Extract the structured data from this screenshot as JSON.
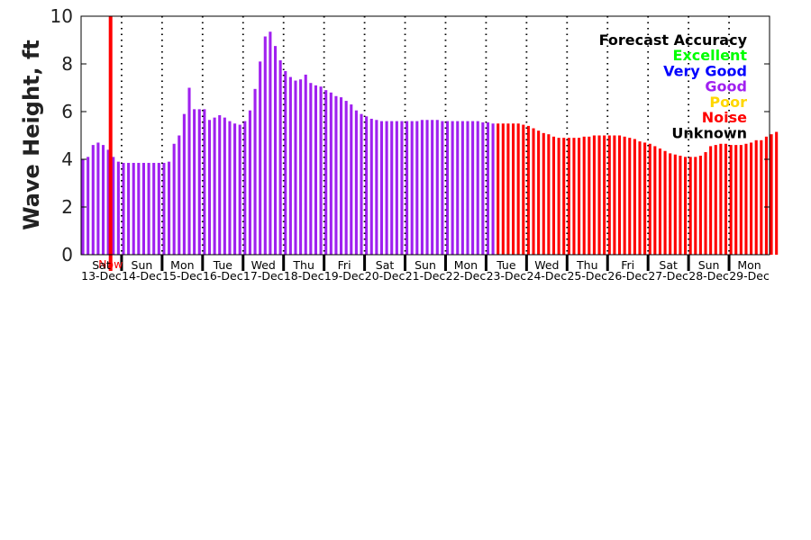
{
  "chart_data": {
    "type": "bar",
    "ylabel": "Wave Height, ft",
    "ylim": [
      0,
      10
    ],
    "yticks": [
      "0",
      "2",
      "4",
      "6",
      "8",
      "10"
    ],
    "grid": "vertical dotted at day boundaries",
    "days": [
      {
        "day": "Sat",
        "date": "13-Dec"
      },
      {
        "day": "Sun",
        "date": "14-Dec"
      },
      {
        "day": "Mon",
        "date": "15-Dec"
      },
      {
        "day": "Tue",
        "date": "16-Dec"
      },
      {
        "day": "Wed",
        "date": "17-Dec"
      },
      {
        "day": "Thu",
        "date": "18-Dec"
      },
      {
        "day": "Fri",
        "date": "19-Dec"
      },
      {
        "day": "Sat",
        "date": "20-Dec"
      },
      {
        "day": "Sun",
        "date": "21-Dec"
      },
      {
        "day": "Mon",
        "date": "22-Dec"
      },
      {
        "day": "Tue",
        "date": "23-Dec"
      },
      {
        "day": "Wed",
        "date": "24-Dec"
      },
      {
        "day": "Thu",
        "date": "25-Dec"
      },
      {
        "day": "Fri",
        "date": "26-Dec"
      },
      {
        "day": "Sat",
        "date": "27-Dec"
      },
      {
        "day": "Sun",
        "date": "28-Dec"
      },
      {
        "day": "Mon",
        "date": "29-Dec"
      }
    ],
    "now_label": "Now",
    "now_color": "#ff0000",
    "now_time": "13-Dec 18:00",
    "interval_hours": 3,
    "series": [
      {
        "accuracy": "Good",
        "color": "#a020f0",
        "start": "13-Dec 00:00",
        "values": [
          4.0,
          4.1,
          4.6,
          4.7,
          4.6,
          4.4,
          4.1,
          3.9,
          3.85,
          3.85,
          3.85,
          3.85,
          3.85,
          3.85,
          3.85,
          3.85,
          3.85,
          3.9,
          4.65,
          5.0,
          5.9,
          7.0,
          6.1,
          6.1,
          6.1,
          5.65,
          5.75,
          5.85,
          5.75,
          5.6,
          5.5,
          5.45,
          5.6,
          6.05,
          6.95,
          8.1,
          9.15,
          9.35,
          8.75,
          8.15,
          7.7,
          7.45,
          7.3,
          7.35,
          7.55,
          7.2,
          7.1,
          7.05,
          6.9,
          6.8,
          6.65,
          6.6,
          6.45,
          6.3,
          6.05,
          5.9,
          5.8,
          5.7,
          5.65,
          5.6,
          5.6,
          5.6,
          5.6,
          5.6,
          5.6,
          5.6,
          5.6,
          5.65,
          5.65,
          5.65,
          5.65,
          5.6,
          5.6,
          5.6,
          5.6,
          5.6,
          5.6,
          5.6,
          5.6,
          5.55,
          5.55,
          5.5
        ]
      },
      {
        "accuracy": "Noise",
        "color": "#ff0000",
        "start": "23-Dec 06:00",
        "values": [
          5.5,
          5.5,
          5.5,
          5.5,
          5.5,
          5.45,
          5.4,
          5.3,
          5.2,
          5.1,
          5.05,
          4.95,
          4.9,
          4.9,
          4.9,
          4.9,
          4.9,
          4.95,
          4.95,
          5.0,
          5.0,
          5.0,
          5.0,
          5.0,
          5.0,
          4.95,
          4.9,
          4.85,
          4.75,
          4.7,
          4.65,
          4.55,
          4.45,
          4.35,
          4.25,
          4.2,
          4.15,
          4.1,
          4.1,
          4.1,
          4.15,
          4.3,
          4.55,
          4.6,
          4.65,
          4.65,
          4.6,
          4.6,
          4.6,
          4.65,
          4.7,
          4.8,
          4.8,
          4.95,
          5.05,
          5.15
        ]
      }
    ],
    "legend": {
      "title": "Forecast Accuracy",
      "position": "top-right",
      "entries": [
        {
          "label": "Excellent",
          "color": "#00ff00"
        },
        {
          "label": "Very Good",
          "color": "#0000ff"
        },
        {
          "label": "Good",
          "color": "#a020f0"
        },
        {
          "label": "Poor",
          "color": "#ffd700"
        },
        {
          "label": "Noise",
          "color": "#ff0000"
        },
        {
          "label": "Unknown",
          "color": "#000000"
        }
      ]
    }
  }
}
